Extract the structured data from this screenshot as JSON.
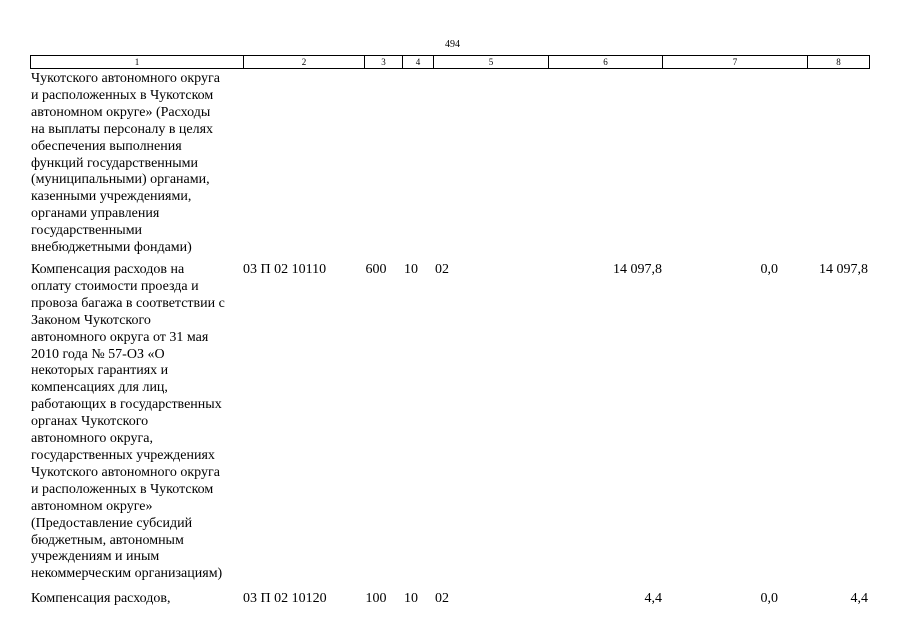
{
  "page_number": "494",
  "header": [
    "1",
    "2",
    "3",
    "4",
    "5",
    "6",
    "7",
    "8"
  ],
  "rows": [
    {
      "description": "Чукотского автономного округа\nи расположенных в Чукотском\nавтономном округе» (Расходы\nна выплаты персоналу в целях\nобеспечения выполнения\nфункций государственными\n(муниципальными) органами,\nказенными учреждениями,\nорганами управления\nгосударственными\nвнебюджетными фондами)",
      "code": "",
      "vr": "",
      "rz": "",
      "pr": "",
      "sum": "",
      "change": "",
      "total": ""
    },
    {
      "description": "Компенсация расходов на\nоплату стоимости проезда и\nпровоза багажа в соответствии с\nЗаконом Чукотского\nавтономного округа от 31 мая\n2010 года № 57-ОЗ «О\nнекоторых гарантиях и\nкомпенсациях для лиц,\nработающих в государственных\nорганах Чукотского\nавтономного округа,\nгосударственных учреждениях\nЧукотского автономного округа\nи расположенных в Чукотском\nавтономном округе»\n(Предоставление субсидий\nбюджетным, автономным\nучреждениям и иным\nнекоммерческим организациям)",
      "code": "03 П 02 10110",
      "vr": "600",
      "rz": "10",
      "pr": "02",
      "sum": "14 097,8",
      "change": "0,0",
      "total": "14 097,8"
    },
    {
      "description": "Компенсация расходов,",
      "code": "03 П 02 10120",
      "vr": "100",
      "rz": "10",
      "pr": "02",
      "sum": "4,4",
      "change": "0,0",
      "total": "4,4"
    }
  ]
}
